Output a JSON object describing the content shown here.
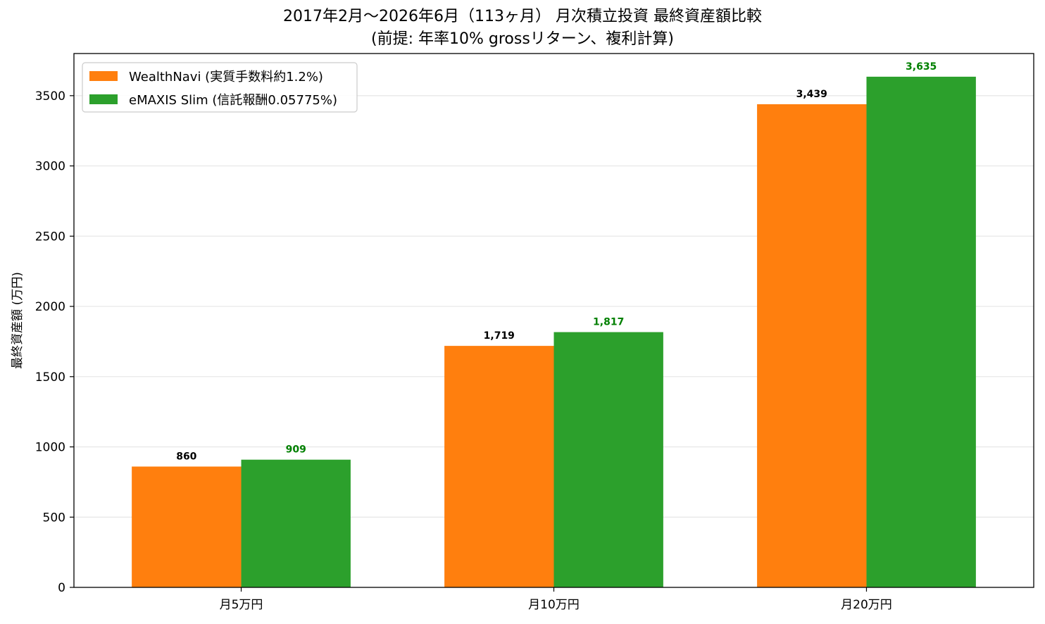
{
  "chart_data": {
    "type": "bar",
    "title": "2017年2月〜2026年6月（113ヶ月） 月次積立投資 最終資産額比較",
    "subtitle": "(前提: 年率10% grossリターン、複利計算)",
    "xlabel": "",
    "ylabel": "最終資産額 (万円)",
    "categories": [
      "月5万円",
      "月10万円",
      "月20万円"
    ],
    "series": [
      {
        "name": "WealthNavi (実質手数料約1.2%)",
        "color": "#ff7f0e",
        "label_color": "#000000",
        "values": [
          860,
          1719,
          3439
        ],
        "labels": [
          "860",
          "1,719",
          "3,439"
        ]
      },
      {
        "name": "eMAXIS Slim (信託報酬0.05775%)",
        "color": "#2ca02c",
        "label_color": "#008000",
        "values": [
          909,
          1817,
          3635
        ],
        "labels": [
          "909",
          "1,817",
          "3,635"
        ]
      }
    ],
    "ylim": [
      0,
      3800
    ],
    "yticks": [
      0,
      500,
      1000,
      1500,
      2000,
      2500,
      3000,
      3500
    ],
    "grid": true,
    "legend": "top-left"
  }
}
